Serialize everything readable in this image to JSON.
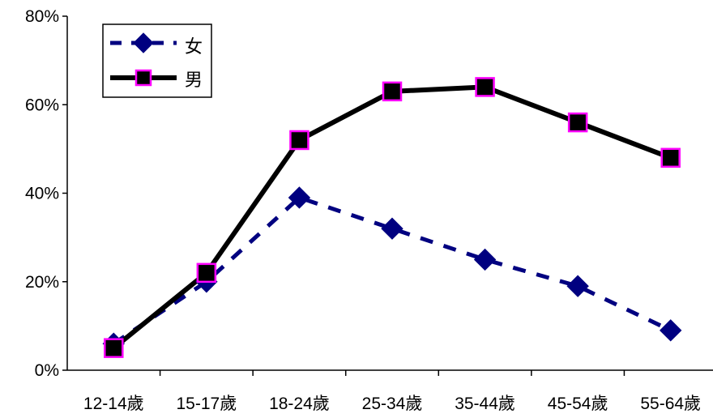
{
  "chart_data": {
    "type": "line",
    "categories": [
      "12-14歲",
      "15-17歲",
      "18-24歲",
      "25-34歲",
      "35-44歲",
      "45-54歲",
      "55-64歲"
    ],
    "ylim": [
      0,
      0.8
    ],
    "yticks": [
      0,
      0.2,
      0.4,
      0.6,
      0.8
    ],
    "ytick_labels": [
      "0%",
      "20%",
      "40%",
      "60%",
      "80%"
    ],
    "grid": false,
    "legend_position": "top-left",
    "series": [
      {
        "name": "女",
        "values": [
          0.06,
          0.2,
          0.39,
          0.32,
          0.25,
          0.19,
          0.09
        ],
        "line_color": "#000080",
        "line_style": "dashed",
        "marker": "diamond",
        "marker_fill": "#000080",
        "marker_stroke": "#000080"
      },
      {
        "name": "男",
        "values": [
          0.05,
          0.22,
          0.52,
          0.63,
          0.64,
          0.56,
          0.48
        ],
        "line_color": "#000000",
        "line_style": "solid",
        "marker": "square",
        "marker_fill": "#000000",
        "marker_stroke": "#ff00ff"
      }
    ]
  }
}
